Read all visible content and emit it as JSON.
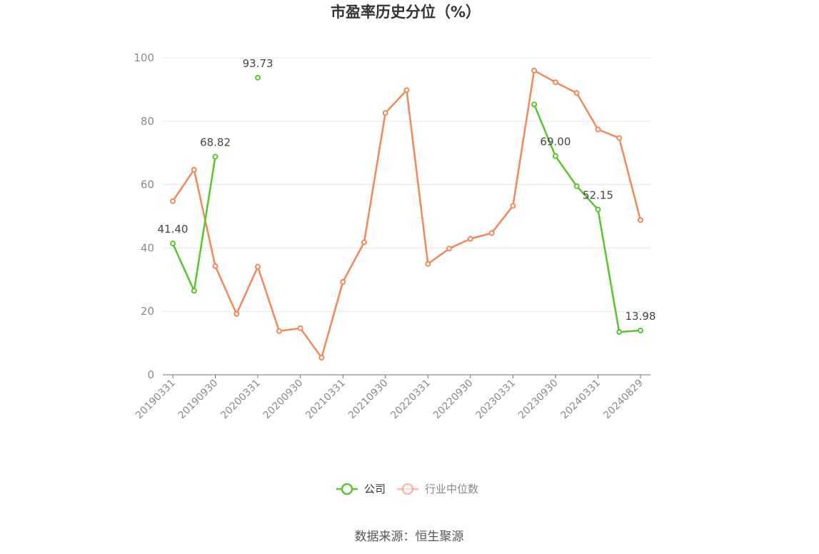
{
  "chart_data": {
    "type": "line",
    "title": "市盈率历史分位（%）",
    "ylim": [
      0,
      100
    ],
    "yticks": [
      "0",
      "20",
      "40",
      "60",
      "80",
      "100"
    ],
    "x": [
      "20190331",
      "20190630",
      "20190930",
      "20191231",
      "20200331",
      "20200630",
      "20200930",
      "20201231",
      "20210331",
      "20210630",
      "20210930",
      "20211231",
      "20220331",
      "20220630",
      "20220930",
      "20221231",
      "20230331",
      "20230630",
      "20230930",
      "20231231",
      "20240331",
      "20240630",
      "20240829"
    ],
    "xtick_labels": [
      "20190331",
      "20190930",
      "20200331",
      "20200930",
      "20210331",
      "20210930",
      "20220331",
      "20220930",
      "20230331",
      "20230930",
      "20240331",
      "20240829"
    ],
    "series": [
      {
        "name": "公司",
        "color": "#5bc42a",
        "values": [
          41.4,
          26.5,
          68.82,
          null,
          93.73,
          null,
          null,
          null,
          null,
          null,
          null,
          null,
          null,
          null,
          null,
          null,
          null,
          85.3,
          69.0,
          59.5,
          52.15,
          13.5,
          13.98
        ],
        "labels": {
          "0": "41.40",
          "2": "68.82",
          "4": "93.73",
          "18": "69.00",
          "20": "52.15",
          "22": "13.98"
        }
      },
      {
        "name": "行业中位数",
        "color": "#f0885a",
        "values": [
          54.8,
          64.7,
          34.3,
          19.2,
          34.1,
          13.8,
          14.7,
          5.4,
          29.3,
          41.8,
          82.6,
          89.8,
          35.0,
          39.8,
          42.9,
          44.7,
          53.3,
          96.0,
          92.3,
          88.9,
          77.4,
          74.7,
          48.8
        ]
      }
    ],
    "legend": [
      {
        "label": "公司",
        "color": "#5bc42a",
        "text_color": "#333333"
      },
      {
        "label": "行业中位数",
        "color": "#f0885a",
        "text_color": "#888888"
      }
    ],
    "legend_position": "bottom-center",
    "grid": true
  },
  "source": "数据来源：恒生聚源"
}
